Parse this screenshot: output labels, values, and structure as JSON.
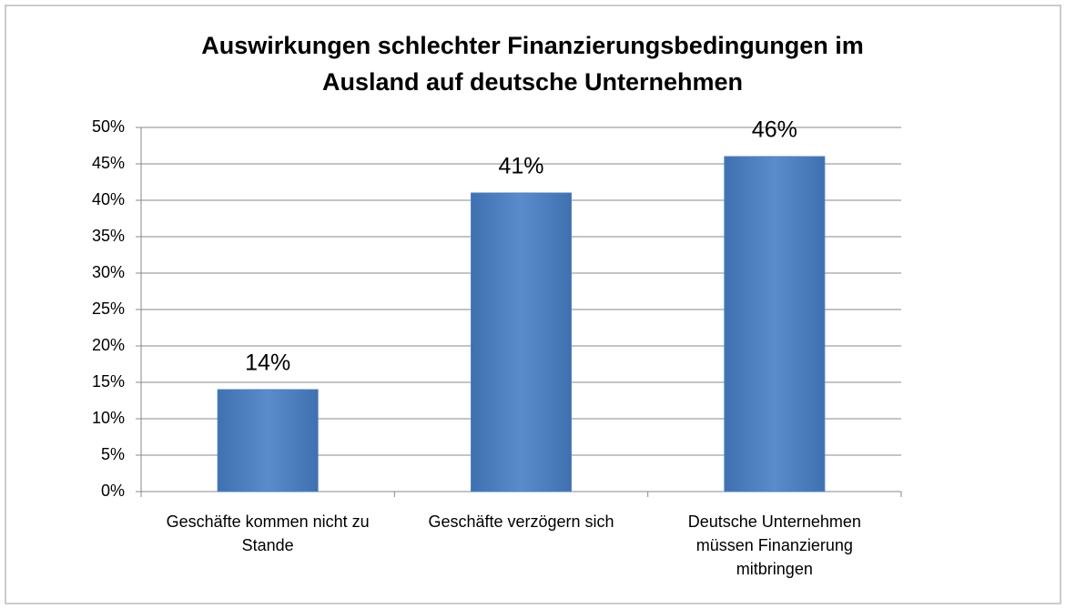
{
  "chart_data": {
    "type": "bar",
    "title": [
      "Auswirkungen schlechter Finanzierungsbedingungen im",
      "Ausland auf deutsche Unternehmen"
    ],
    "categories": [
      "Geschäfte kommen nicht zu Stande",
      "Geschäfte verzögern sich",
      "Deutsche Unternehmen müssen Finanzierung mitbringen"
    ],
    "values": [
      14,
      41,
      46
    ],
    "value_labels": [
      "14%",
      "41%",
      "46%"
    ],
    "color": "#4f81bd",
    "ylim": [
      0,
      50
    ],
    "yticks": [
      {
        "value": 0,
        "label": "0%"
      },
      {
        "value": 5,
        "label": "5%"
      },
      {
        "value": 10,
        "label": "10%"
      },
      {
        "value": 15,
        "label": "15%"
      },
      {
        "value": 20,
        "label": "20%"
      },
      {
        "value": 25,
        "label": "25%"
      },
      {
        "value": 30,
        "label": "30%"
      },
      {
        "value": 35,
        "label": "35%"
      },
      {
        "value": 40,
        "label": "40%"
      },
      {
        "value": 45,
        "label": "45%"
      },
      {
        "value": 50,
        "label": "50%"
      }
    ],
    "grid": true
  }
}
